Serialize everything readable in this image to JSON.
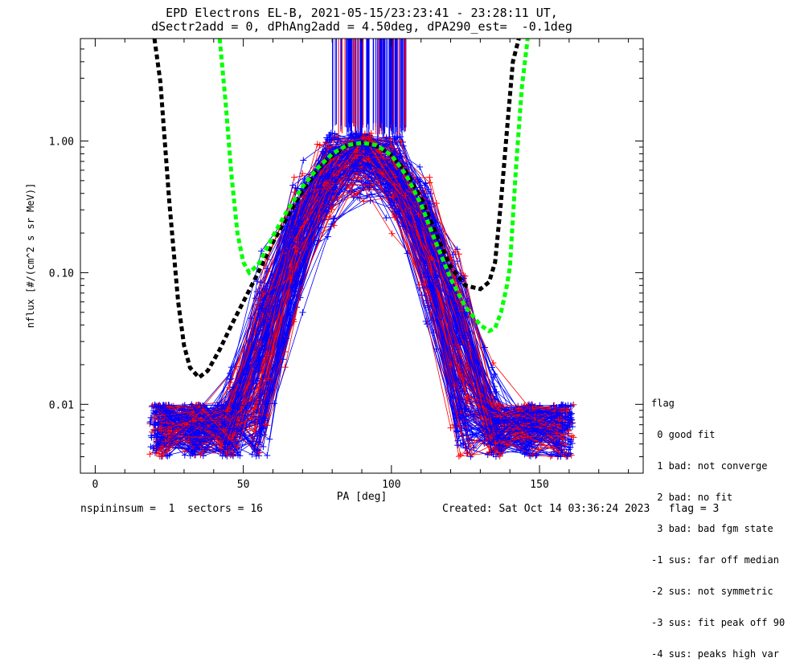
{
  "title": {
    "line1": "EPD Electrons EL-B, 2021-05-15/23:23:41 - 23:28:11 UT,",
    "line2": "dSectr2add = 0, dPhAng2add = 4.50deg, dPA290_est=  -0.1deg"
  },
  "footer": {
    "left": "nspininsum =  1  sectors = 16",
    "right": "Created: Sat Oct 14 03:36:24 2023   flag = 3"
  },
  "legend": {
    "title": "flag",
    "items": [
      " 0 good fit",
      " 1 bad: not converge",
      " 2 bad: no fit",
      " 3 bad: bad fgm state",
      "-1 sus: far off median",
      "-2 sus: not symmetric",
      "-3 sus: fit peak off 90",
      "-4 sus: peaks high var"
    ]
  },
  "chart_data": {
    "type": "line",
    "xlabel": "PA [deg]",
    "ylabel": "nflux [#/(cm^2 s sr MeV)]",
    "xlim": [
      -5,
      185
    ],
    "ylim": [
      0.003,
      6.0
    ],
    "yscale": "log",
    "x_ticks": [
      0,
      50,
      100,
      150
    ],
    "x_tick_labels": [
      "0",
      "50",
      "100",
      "150"
    ],
    "y_ticks": [
      0.01,
      0.1,
      1.0
    ],
    "y_tick_labels": [
      "0.01",
      "0.10",
      "1.00"
    ],
    "colors": {
      "series_a": "#0000ff",
      "series_b": "#ff0000",
      "fit_black": "#000000",
      "fit_green": "#00ff00"
    },
    "fit_curves": [
      {
        "color": "black",
        "x": [
          20,
          22,
          25,
          28,
          30,
          32,
          35,
          38,
          42,
          46,
          50,
          55,
          60,
          65,
          70,
          75,
          80,
          85,
          90,
          95,
          100,
          105,
          110,
          115,
          120,
          125,
          130,
          133,
          135,
          137,
          139,
          141,
          143
        ],
        "y": [
          6.0,
          2.8,
          0.35,
          0.06,
          0.028,
          0.019,
          0.016,
          0.018,
          0.026,
          0.04,
          0.06,
          0.1,
          0.17,
          0.27,
          0.42,
          0.6,
          0.78,
          0.92,
          0.97,
          0.92,
          0.78,
          0.58,
          0.37,
          0.2,
          0.11,
          0.08,
          0.075,
          0.085,
          0.12,
          0.35,
          1.2,
          4.0,
          6.0
        ]
      },
      {
        "color": "green",
        "x": [
          42,
          44,
          46,
          48,
          50,
          52,
          55,
          60,
          65,
          70,
          75,
          80,
          85,
          90,
          95,
          100,
          105,
          110,
          115,
          120,
          125,
          130,
          133,
          135,
          137,
          139,
          140,
          142,
          144,
          146
        ],
        "y": [
          6.0,
          2.0,
          0.55,
          0.2,
          0.12,
          0.1,
          0.115,
          0.19,
          0.3,
          0.45,
          0.62,
          0.8,
          0.93,
          0.97,
          0.93,
          0.78,
          0.55,
          0.33,
          0.17,
          0.09,
          0.055,
          0.04,
          0.036,
          0.038,
          0.05,
          0.08,
          0.11,
          0.6,
          2.5,
          6.0
        ]
      }
    ]
  }
}
